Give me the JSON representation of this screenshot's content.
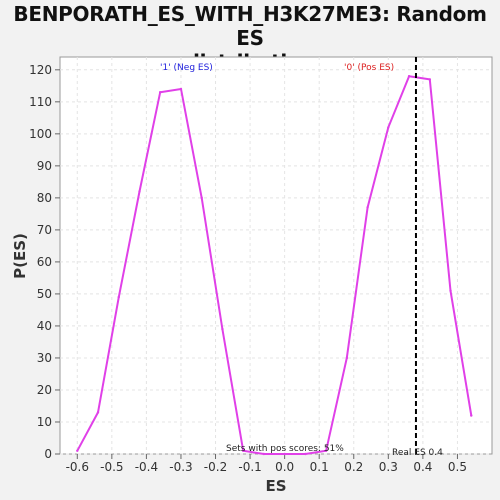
{
  "chart_data": {
    "type": "line",
    "title_line1": "BENPORATH_ES_WITH_H3K27ME3: Random ES",
    "title_line2": "distribution",
    "xlabel": "ES",
    "ylabel": "P(ES)",
    "xlim": [
      -0.65,
      0.6
    ],
    "ylim": [
      0,
      124
    ],
    "xticks": [
      -0.6,
      -0.5,
      -0.4,
      -0.3,
      -0.2,
      -0.1,
      0.0,
      0.1,
      0.2,
      0.3,
      0.4,
      0.5
    ],
    "xtick_labels": [
      "-0.6",
      "-0.5",
      "-0.4",
      "-0.3",
      "-0.2",
      "-0.1",
      "0.0",
      "0.1",
      "0.2",
      "0.3",
      "0.4",
      "0.5"
    ],
    "yticks": [
      0,
      10,
      20,
      30,
      40,
      50,
      60,
      70,
      80,
      90,
      100,
      110,
      120
    ],
    "grid": true,
    "series": [
      {
        "color": "#e040e8",
        "x": [
          -0.6,
          -0.54,
          -0.48,
          -0.42,
          -0.36,
          -0.3,
          -0.24,
          -0.18,
          -0.12,
          -0.06,
          0.0,
          0.06,
          0.12,
          0.18,
          0.24,
          0.3,
          0.36,
          0.42,
          0.48,
          0.54
        ],
        "y": [
          1,
          13,
          49,
          82,
          113,
          114,
          80,
          39,
          1,
          0,
          0,
          0,
          1,
          30,
          77,
          102,
          118,
          117,
          51,
          12
        ]
      }
    ],
    "real_es": 0.38,
    "annotations": {
      "neg_label": "'1' (Neg ES)",
      "pos_label": "'0' (Pos ES)",
      "sets_text": "Sets with pos scores: 51%",
      "real_es_text": "Real ES 0.4"
    },
    "colors": {
      "neg": "#2222dd",
      "pos": "#dd2222",
      "line": "#e040e8"
    }
  }
}
